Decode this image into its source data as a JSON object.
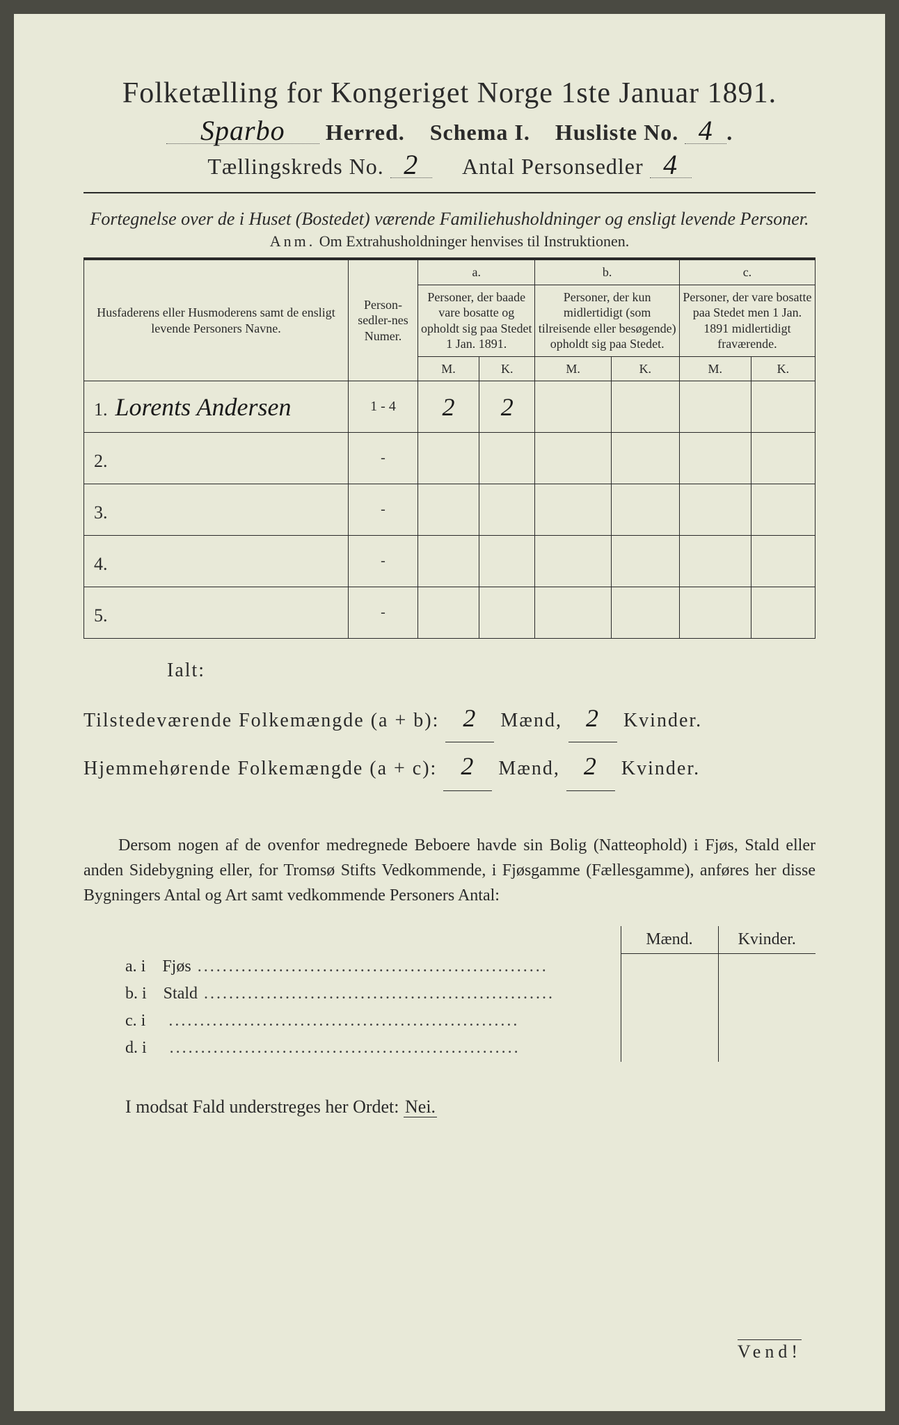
{
  "title": "Folketælling for Kongeriget Norge 1ste Januar 1891.",
  "header": {
    "herred_hand": "Sparbo",
    "herred_label": "Herred.",
    "schema_label": "Schema I.",
    "husliste_label": "Husliste No.",
    "husliste_no": "4",
    "kreds_label": "Tællingskreds No.",
    "kreds_no": "2",
    "sedler_label": "Antal Personsedler",
    "sedler_no": "4"
  },
  "subtitle": "Fortegnelse over de i Huset (Bostedet) værende Familiehusholdninger og ensligt levende Personer.",
  "anm_lead": "Anm.",
  "anm_text": "Om Extrahusholdninger henvises til Instruktionen.",
  "table": {
    "col_name": "Husfaderens eller Husmoderens samt de ensligt levende Personers Navne.",
    "col_numer": "Person-sedler-nes Numer.",
    "col_a_label": "a.",
    "col_a": "Personer, der baade vare bosatte og opholdt sig paa Stedet 1 Jan. 1891.",
    "col_b_label": "b.",
    "col_b": "Personer, der kun midlertidigt (som tilreisende eller besøgende) opholdt sig paa Stedet.",
    "col_c_label": "c.",
    "col_c": "Personer, der vare bosatte paa Stedet men 1 Jan. 1891 midlertidigt fraværende.",
    "mk_m": "M.",
    "mk_k": "K.",
    "rows": [
      {
        "n": "1.",
        "name": "Lorents Andersen",
        "numer": "1 - 4",
        "a_m": "2",
        "a_k": "2",
        "b_m": "",
        "b_k": "",
        "c_m": "",
        "c_k": ""
      },
      {
        "n": "2.",
        "name": "",
        "numer": "-",
        "a_m": "",
        "a_k": "",
        "b_m": "",
        "b_k": "",
        "c_m": "",
        "c_k": ""
      },
      {
        "n": "3.",
        "name": "",
        "numer": "-",
        "a_m": "",
        "a_k": "",
        "b_m": "",
        "b_k": "",
        "c_m": "",
        "c_k": ""
      },
      {
        "n": "4.",
        "name": "",
        "numer": "-",
        "a_m": "",
        "a_k": "",
        "b_m": "",
        "b_k": "",
        "c_m": "",
        "c_k": ""
      },
      {
        "n": "5.",
        "name": "",
        "numer": "-",
        "a_m": "",
        "a_k": "",
        "b_m": "",
        "b_k": "",
        "c_m": "",
        "c_k": ""
      }
    ]
  },
  "ialt_label": "Ialt:",
  "totals": {
    "line1_label": "Tilstedeværende Folkemængde (a + b):",
    "line2_label": "Hjemmehørende Folkemængde (a + c):",
    "maend_label": "Mænd,",
    "kvinder_label": "Kvinder.",
    "ab_m": "2",
    "ab_k": "2",
    "ac_m": "2",
    "ac_k": "2"
  },
  "para": "Dersom nogen af de ovenfor medregnede Beboere havde sin Bolig (Natteophold) i Fjøs, Stald eller anden Sidebygning eller, for Tromsø Stifts Vedkommende, i Fjøsgamme (Fællesgamme), anføres her disse Bygningers Antal og Art samt vedkommende Personers Antal:",
  "bottom": {
    "maend": "Mænd.",
    "kvinder": "Kvinder.",
    "rows": [
      {
        "k": "a.  i",
        "label": "Fjøs"
      },
      {
        "k": "b.  i",
        "label": "Stald"
      },
      {
        "k": "c.  i",
        "label": ""
      },
      {
        "k": "d.  i",
        "label": ""
      }
    ]
  },
  "nei_line_pre": "I modsat Fald understreges her Ordet:",
  "nei": "Nei.",
  "vend": "Vend!",
  "colors": {
    "page_bg": "#e8e9d8",
    "ink": "#2a2a2a",
    "outer_bg": "#4a4a42"
  }
}
